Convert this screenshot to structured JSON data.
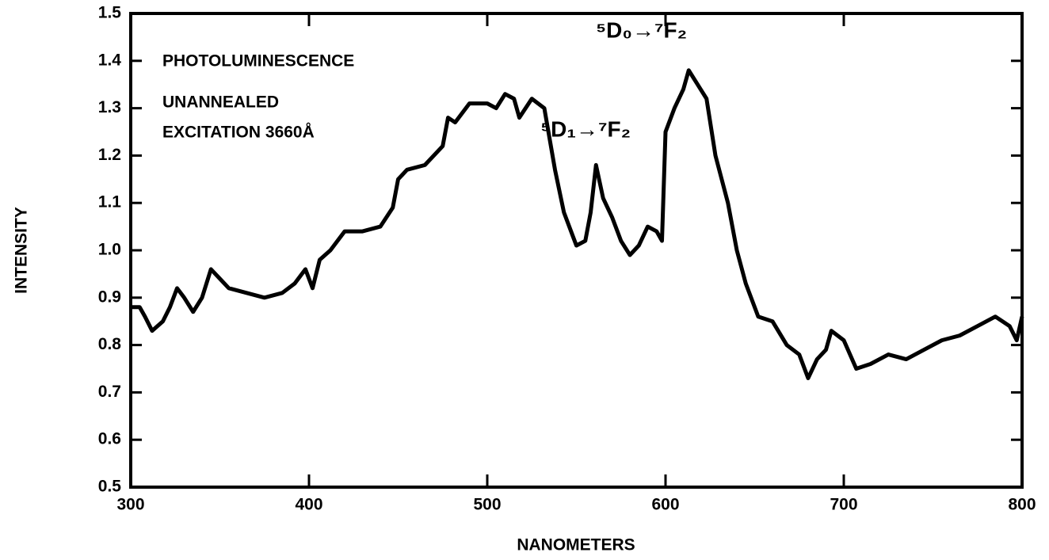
{
  "chart_data": {
    "type": "line",
    "xlabel": "NANOMETERS",
    "ylabel": "INTENSITY",
    "annotations": [
      "PHOTOLUMINESCENCE",
      "UNANNEALED",
      "EXCITATION 3660Å",
      "⁵D₁→⁷F₂",
      "⁵D₀→⁷F₂"
    ],
    "x": [
      300,
      305,
      308,
      312,
      318,
      322,
      326,
      330,
      335,
      340,
      345,
      350,
      355,
      365,
      375,
      385,
      392,
      398,
      402,
      406,
      412,
      420,
      430,
      440,
      447,
      450,
      455,
      465,
      475,
      478,
      482,
      490,
      500,
      505,
      510,
      515,
      518,
      525,
      532,
      538,
      543,
      548,
      550,
      555,
      558,
      561,
      565,
      570,
      575,
      580,
      585,
      590,
      595,
      598,
      600,
      605,
      610,
      613,
      618,
      623,
      628,
      635,
      640,
      645,
      652,
      660,
      668,
      675,
      680,
      685,
      690,
      693,
      700,
      707,
      715,
      725,
      735,
      745,
      755,
      765,
      775,
      785,
      793,
      797,
      800
    ],
    "series": [
      {
        "color": "#000000",
        "values": [
          0.88,
          0.88,
          0.86,
          0.83,
          0.85,
          0.88,
          0.92,
          0.9,
          0.87,
          0.9,
          0.96,
          0.94,
          0.92,
          0.91,
          0.9,
          0.91,
          0.93,
          0.96,
          0.92,
          0.98,
          1.0,
          1.04,
          1.04,
          1.05,
          1.09,
          1.15,
          1.17,
          1.18,
          1.22,
          1.28,
          1.27,
          1.31,
          1.31,
          1.3,
          1.33,
          1.32,
          1.28,
          1.32,
          1.3,
          1.17,
          1.08,
          1.03,
          1.01,
          1.02,
          1.08,
          1.18,
          1.11,
          1.07,
          1.02,
          0.99,
          1.01,
          1.05,
          1.04,
          1.02,
          1.25,
          1.3,
          1.34,
          1.38,
          1.35,
          1.32,
          1.2,
          1.1,
          1.0,
          0.93,
          0.86,
          0.85,
          0.8,
          0.78,
          0.73,
          0.77,
          0.79,
          0.83,
          0.81,
          0.75,
          0.76,
          0.78,
          0.77,
          0.79,
          0.81,
          0.82,
          0.84,
          0.86,
          0.84,
          0.81,
          0.86
        ]
      }
    ],
    "xlim": [
      300,
      800
    ],
    "xticks": [
      300,
      400,
      500,
      600,
      700,
      800
    ],
    "ylim": [
      0.5,
      1.5
    ],
    "yticks": [
      0.5,
      0.6,
      0.7,
      0.8,
      0.9,
      {
        "value": 1,
        "label": "1.0"
      },
      1.1,
      1.2,
      1.3,
      1.4,
      1.5
    ]
  }
}
